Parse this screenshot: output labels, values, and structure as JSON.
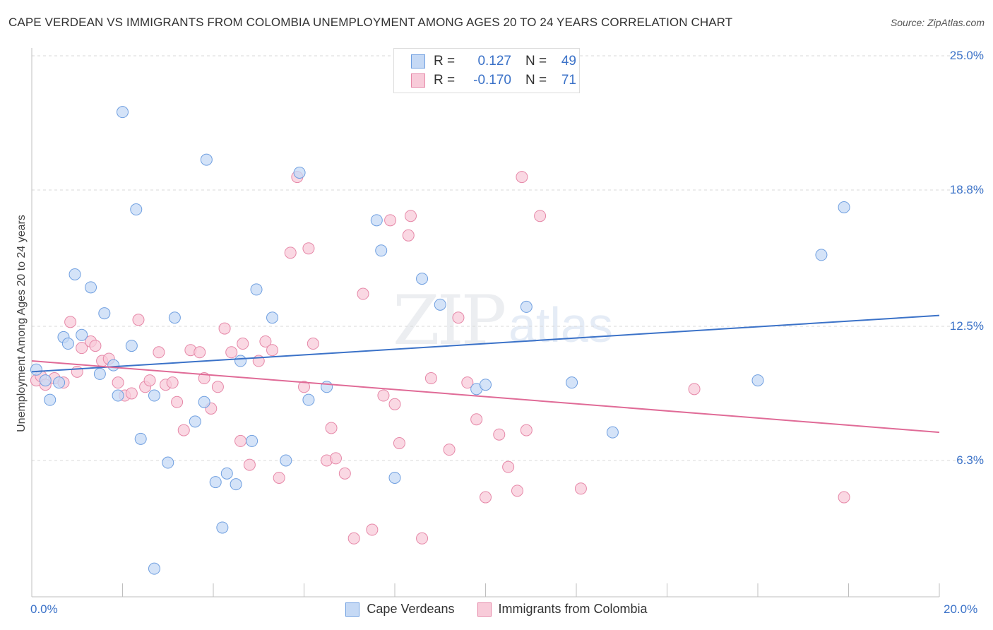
{
  "title": "CAPE VERDEAN VS IMMIGRANTS FROM COLOMBIA UNEMPLOYMENT AMONG AGES 20 TO 24 YEARS CORRELATION CHART",
  "source": "Source: ZipAtlas.com",
  "watermark": {
    "zip": "ZIP",
    "atlas": "atlas"
  },
  "legend_top": [
    {
      "r_label": "R =",
      "r_value": "0.127",
      "n_label": "N =",
      "n_value": "49"
    },
    {
      "r_label": "R =",
      "r_value": "-0.170",
      "n_label": "N =",
      "n_value": "71"
    }
  ],
  "chart_data": {
    "type": "scatter",
    "title": "CAPE VERDEAN VS IMMIGRANTS FROM COLOMBIA UNEMPLOYMENT AMONG AGES 20 TO 24 YEARS CORRELATION CHART",
    "xlabel": "",
    "ylabel": "Unemployment Among Ages 20 to 24 years",
    "xlim": [
      0,
      20
    ],
    "ylim": [
      0,
      25
    ],
    "x_tick_labels": [
      "0.0%",
      "20.0%"
    ],
    "y_ticks": [
      6.3,
      12.5,
      18.8,
      25.0
    ],
    "y_tick_labels": [
      "6.3%",
      "12.5%",
      "18.8%",
      "25.0%"
    ],
    "colors": {
      "cape": "#6f9fe0",
      "cape_fill": "#c5d9f5",
      "cape_line": "#3b72c8",
      "colombia": "#e688a8",
      "colombia_fill": "#f8cbd9",
      "colombia_line": "#e06b97"
    },
    "series": [
      {
        "name": "Cape Verdeans",
        "r": 0.127,
        "n": 49,
        "trend": [
          [
            0,
            10.4
          ],
          [
            20,
            13.0
          ]
        ],
        "points": [
          [
            0.1,
            10.5
          ],
          [
            0.3,
            10.0
          ],
          [
            0.4,
            9.1
          ],
          [
            0.6,
            9.9
          ],
          [
            0.7,
            12.0
          ],
          [
            0.8,
            11.7
          ],
          [
            0.95,
            14.9
          ],
          [
            1.1,
            12.1
          ],
          [
            1.3,
            14.3
          ],
          [
            1.5,
            10.3
          ],
          [
            1.6,
            13.1
          ],
          [
            1.8,
            10.7
          ],
          [
            1.9,
            9.3
          ],
          [
            2.0,
            22.4
          ],
          [
            2.2,
            11.6
          ],
          [
            2.3,
            17.9
          ],
          [
            2.4,
            7.3
          ],
          [
            2.7,
            9.3
          ],
          [
            2.7,
            1.3
          ],
          [
            3.0,
            6.2
          ],
          [
            3.15,
            12.9
          ],
          [
            3.6,
            8.1
          ],
          [
            3.8,
            9.0
          ],
          [
            3.85,
            20.2
          ],
          [
            4.05,
            5.3
          ],
          [
            4.2,
            3.2
          ],
          [
            4.3,
            5.7
          ],
          [
            4.5,
            5.2
          ],
          [
            4.6,
            10.9
          ],
          [
            4.85,
            7.2
          ],
          [
            4.95,
            14.2
          ],
          [
            5.3,
            12.9
          ],
          [
            5.6,
            6.3
          ],
          [
            5.9,
            19.6
          ],
          [
            6.1,
            9.1
          ],
          [
            6.5,
            9.7
          ],
          [
            7.6,
            17.4
          ],
          [
            7.7,
            16.0
          ],
          [
            8.0,
            5.5
          ],
          [
            8.6,
            14.7
          ],
          [
            9.0,
            13.5
          ],
          [
            9.8,
            9.6
          ],
          [
            10.0,
            9.8
          ],
          [
            10.9,
            13.4
          ],
          [
            11.9,
            9.9
          ],
          [
            12.8,
            7.6
          ],
          [
            16.0,
            10.0
          ],
          [
            17.4,
            15.8
          ],
          [
            17.9,
            18.0
          ]
        ]
      },
      {
        "name": "Immigrants from Colombia",
        "r": -0.17,
        "n": 71,
        "trend": [
          [
            0,
            10.9
          ],
          [
            20,
            7.6
          ]
        ],
        "points": [
          [
            0.1,
            10.0
          ],
          [
            0.2,
            10.2
          ],
          [
            0.3,
            9.8
          ],
          [
            0.5,
            10.1
          ],
          [
            0.7,
            9.9
          ],
          [
            0.85,
            12.7
          ],
          [
            1.0,
            10.4
          ],
          [
            1.1,
            11.5
          ],
          [
            1.3,
            11.8
          ],
          [
            1.4,
            11.6
          ],
          [
            1.55,
            10.9
          ],
          [
            1.7,
            11.0
          ],
          [
            1.9,
            9.9
          ],
          [
            2.05,
            9.3
          ],
          [
            2.2,
            9.4
          ],
          [
            2.35,
            12.8
          ],
          [
            2.5,
            9.7
          ],
          [
            2.6,
            10.0
          ],
          [
            2.8,
            11.3
          ],
          [
            2.95,
            9.8
          ],
          [
            3.1,
            9.9
          ],
          [
            3.2,
            9.0
          ],
          [
            3.35,
            7.7
          ],
          [
            3.5,
            11.4
          ],
          [
            3.7,
            11.3
          ],
          [
            3.8,
            10.1
          ],
          [
            3.95,
            8.7
          ],
          [
            4.1,
            9.7
          ],
          [
            4.25,
            12.4
          ],
          [
            4.4,
            11.3
          ],
          [
            4.6,
            7.2
          ],
          [
            4.65,
            11.7
          ],
          [
            4.8,
            6.1
          ],
          [
            5.0,
            10.9
          ],
          [
            5.15,
            11.8
          ],
          [
            5.3,
            11.4
          ],
          [
            5.45,
            5.5
          ],
          [
            5.7,
            15.9
          ],
          [
            5.85,
            19.4
          ],
          [
            6.0,
            9.7
          ],
          [
            6.1,
            16.1
          ],
          [
            6.2,
            11.7
          ],
          [
            6.5,
            6.3
          ],
          [
            6.6,
            7.8
          ],
          [
            6.7,
            6.4
          ],
          [
            6.9,
            5.7
          ],
          [
            7.1,
            2.7
          ],
          [
            7.3,
            14.0
          ],
          [
            7.5,
            3.1
          ],
          [
            7.75,
            9.3
          ],
          [
            7.9,
            17.4
          ],
          [
            8.0,
            8.9
          ],
          [
            8.1,
            7.1
          ],
          [
            8.3,
            16.7
          ],
          [
            8.35,
            17.6
          ],
          [
            8.6,
            2.7
          ],
          [
            8.8,
            10.1
          ],
          [
            9.2,
            6.8
          ],
          [
            9.4,
            12.9
          ],
          [
            9.6,
            9.9
          ],
          [
            9.8,
            8.2
          ],
          [
            10.0,
            4.6
          ],
          [
            10.3,
            7.5
          ],
          [
            10.5,
            6.0
          ],
          [
            10.7,
            4.9
          ],
          [
            10.8,
            19.4
          ],
          [
            10.9,
            7.7
          ],
          [
            11.2,
            17.6
          ],
          [
            12.1,
            5.0
          ],
          [
            14.6,
            9.6
          ],
          [
            17.9,
            4.6
          ]
        ]
      }
    ]
  }
}
